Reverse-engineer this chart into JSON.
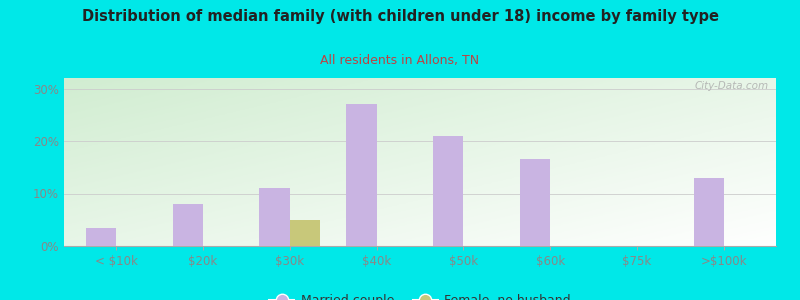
{
  "title": "Distribution of median family (with children under 18) income by family type",
  "subtitle": "All residents in Allons, TN",
  "categories": [
    "< $10k",
    "$20k",
    "$30k",
    "$40k",
    "$50k",
    "$60k",
    "$75k",
    ">$100k"
  ],
  "married_couple": [
    3.5,
    8.0,
    11.0,
    27.0,
    21.0,
    16.5,
    0.0,
    13.0
  ],
  "female_no_husband": [
    0.0,
    0.0,
    5.0,
    0.0,
    0.0,
    0.0,
    0.0,
    0.0
  ],
  "married_color": "#c9b4e2",
  "female_color": "#c8c87a",
  "background_outer": "#00e8e8",
  "title_color": "#222222",
  "subtitle_color": "#bb4444",
  "axis_color": "#888888",
  "yticks": [
    0,
    10,
    20,
    30
  ],
  "ylim": [
    0,
    32
  ],
  "bar_width": 0.35,
  "watermark": "City-Data.com",
  "legend_labels": [
    "Married couple",
    "Female, no husband"
  ]
}
